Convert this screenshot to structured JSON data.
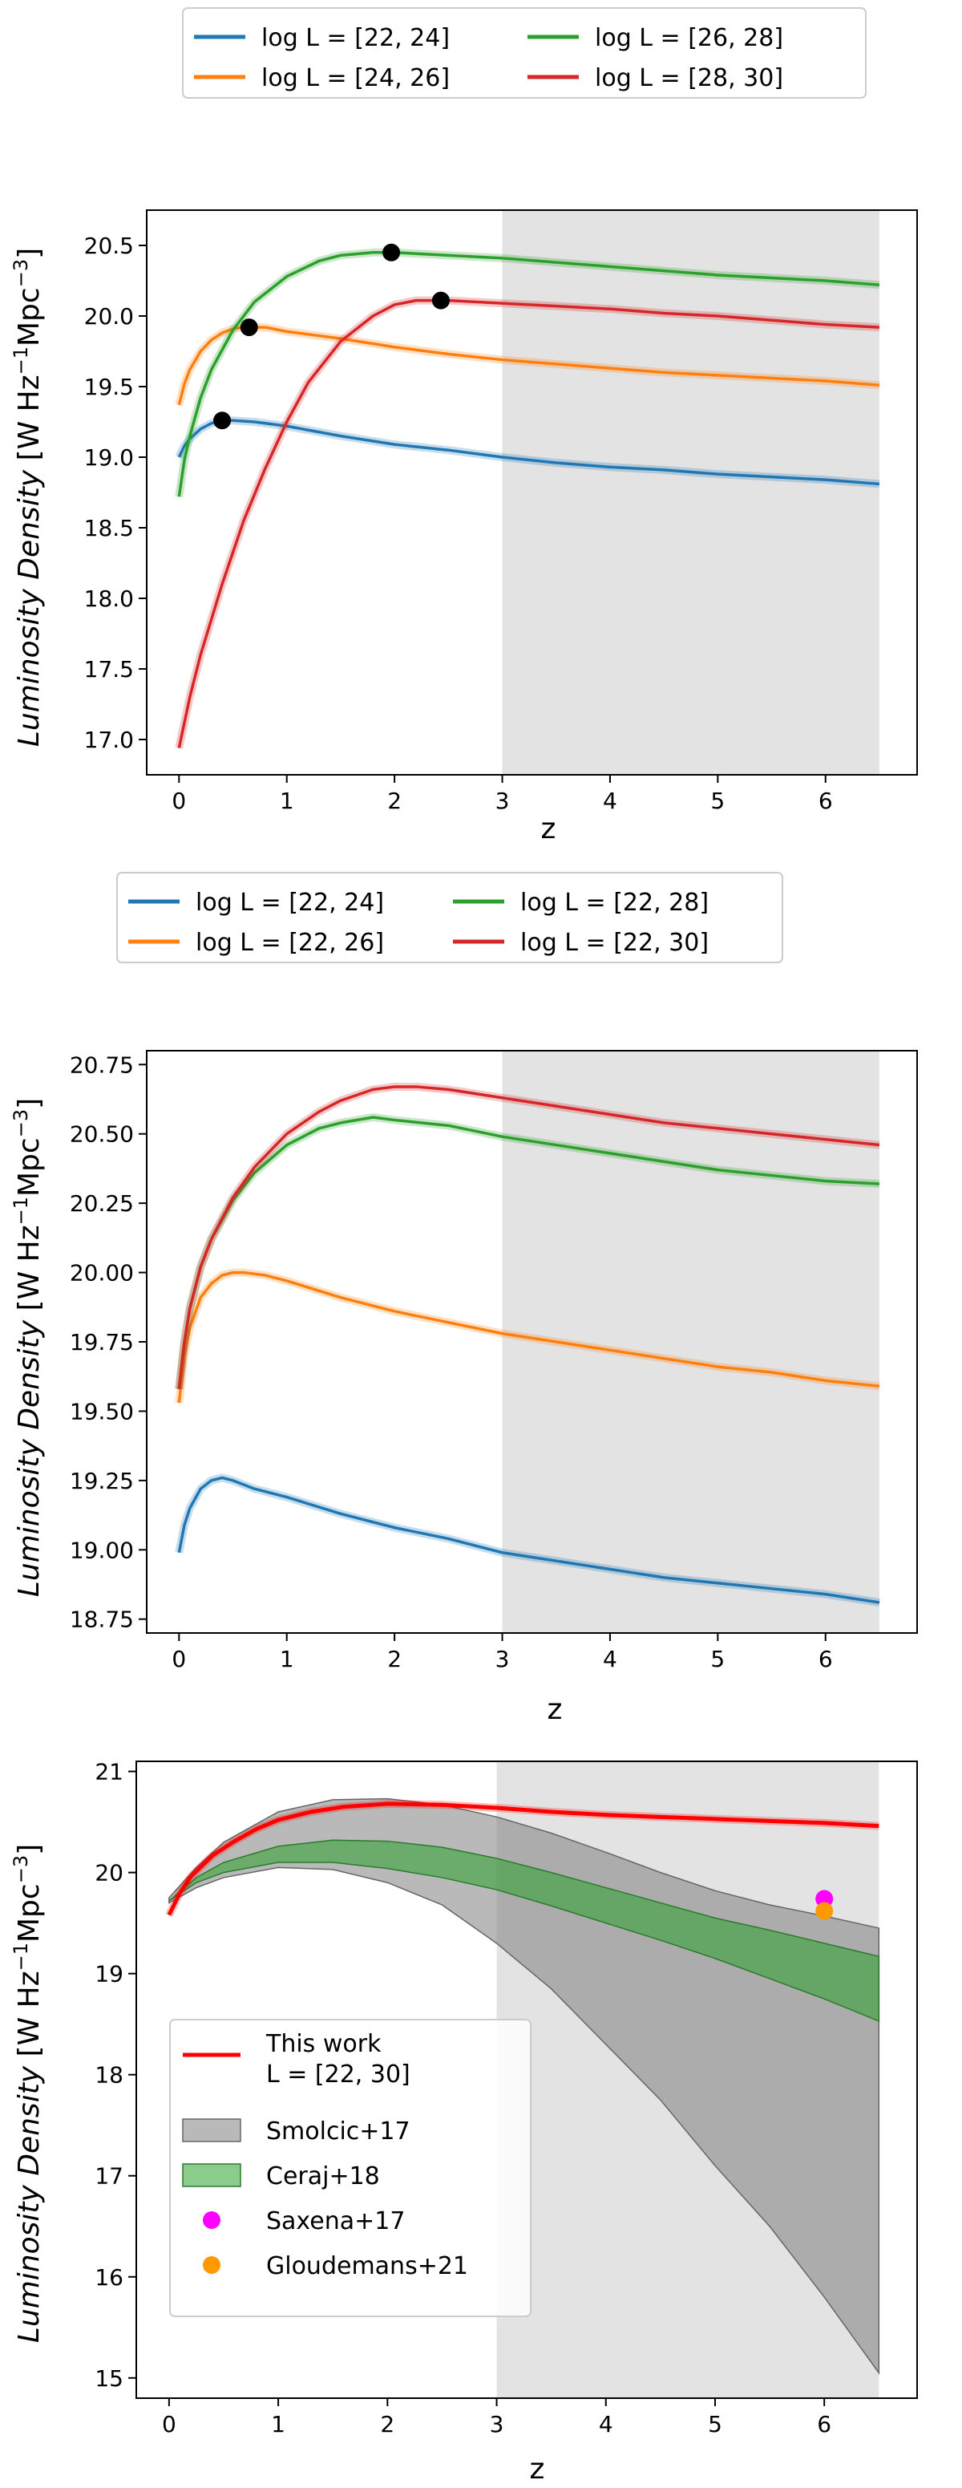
{
  "chart_data": [
    {
      "type": "line",
      "title": "",
      "xlabel": "z",
      "ylabel": "Luminosity Density [W Hz⁻¹Mpc⁻³]",
      "xlim": [
        -0.3,
        6.85
      ],
      "ylim": [
        16.75,
        20.75
      ],
      "xticks": [
        0,
        1,
        2,
        3,
        4,
        5,
        6
      ],
      "yticks": [
        17.0,
        17.5,
        18.0,
        18.5,
        19.0,
        19.5,
        20.0,
        20.5
      ],
      "ytick_labels": [
        "17.0",
        "17.5",
        "18.0",
        "18.5",
        "19.0",
        "19.5",
        "20.0",
        "20.5"
      ],
      "shaded_region": [
        3.0,
        6.5
      ],
      "legend_position": "top-center, above plot",
      "series": [
        {
          "name": "log L = [22, 24]",
          "color": "#1f77b4",
          "x": [
            0,
            0.05,
            0.1,
            0.2,
            0.3,
            0.4,
            0.5,
            0.7,
            1.0,
            1.5,
            2.0,
            2.5,
            3.0,
            3.5,
            4.0,
            4.5,
            5.0,
            5.5,
            6.0,
            6.5
          ],
          "y": [
            19.0,
            19.08,
            19.13,
            19.2,
            19.24,
            19.26,
            19.26,
            19.25,
            19.22,
            19.15,
            19.09,
            19.05,
            19.0,
            18.96,
            18.93,
            18.91,
            18.88,
            18.86,
            18.84,
            18.81
          ],
          "marker": {
            "x": 0.4,
            "y": 19.26
          }
        },
        {
          "name": "log L = [24, 26]",
          "color": "#ff7f0e",
          "x": [
            0,
            0.05,
            0.1,
            0.2,
            0.3,
            0.4,
            0.5,
            0.6,
            0.7,
            0.8,
            1.0,
            1.5,
            2.0,
            2.5,
            3.0,
            3.5,
            4.0,
            4.5,
            5.0,
            5.5,
            6.0,
            6.5
          ],
          "y": [
            19.37,
            19.52,
            19.62,
            19.75,
            19.83,
            19.88,
            19.91,
            19.92,
            19.92,
            19.92,
            19.89,
            19.84,
            19.78,
            19.73,
            19.69,
            19.66,
            19.63,
            19.6,
            19.58,
            19.56,
            19.54,
            19.51
          ],
          "marker": {
            "x": 0.65,
            "y": 19.92
          }
        },
        {
          "name": "log L = [26, 28]",
          "color": "#2ca02c",
          "x": [
            0,
            0.05,
            0.1,
            0.2,
            0.3,
            0.5,
            0.7,
            1.0,
            1.3,
            1.5,
            1.8,
            2.0,
            2.5,
            3.0,
            3.5,
            4.0,
            4.5,
            5.0,
            5.5,
            6.0,
            6.5
          ],
          "y": [
            18.72,
            18.98,
            19.15,
            19.42,
            19.62,
            19.9,
            20.1,
            20.28,
            20.39,
            20.43,
            20.45,
            20.45,
            20.43,
            20.41,
            20.38,
            20.35,
            20.32,
            20.29,
            20.27,
            20.25,
            20.22
          ],
          "marker": {
            "x": 1.97,
            "y": 20.45
          }
        },
        {
          "name": "log L = [28, 30]",
          "color": "#d62728",
          "x": [
            0,
            0.1,
            0.2,
            0.4,
            0.6,
            0.8,
            1.0,
            1.2,
            1.5,
            1.8,
            2.0,
            2.2,
            2.5,
            3.0,
            3.5,
            4.0,
            4.5,
            5.0,
            5.5,
            6.0,
            6.5
          ],
          "y": [
            16.94,
            17.3,
            17.6,
            18.1,
            18.55,
            18.92,
            19.25,
            19.53,
            19.82,
            20.0,
            20.08,
            20.11,
            20.11,
            20.09,
            20.07,
            20.05,
            20.02,
            20.0,
            19.97,
            19.94,
            19.92
          ],
          "marker": {
            "x": 2.43,
            "y": 20.11
          }
        }
      ]
    },
    {
      "type": "line",
      "title": "",
      "xlabel": "z",
      "ylabel": "Luminosity Density [W Hz⁻¹Mpc⁻³]",
      "xlim": [
        -0.3,
        6.85
      ],
      "ylim": [
        18.7,
        20.8
      ],
      "xticks": [
        0,
        1,
        2,
        3,
        4,
        5,
        6
      ],
      "yticks": [
        18.75,
        19.0,
        19.25,
        19.5,
        19.75,
        20.0,
        20.25,
        20.5,
        20.75
      ],
      "ytick_labels": [
        "18.75",
        "19.00",
        "19.25",
        "19.50",
        "19.75",
        "20.00",
        "20.25",
        "20.50",
        "20.75"
      ],
      "shaded_region": [
        3.0,
        6.5
      ],
      "legend_position": "top-center, above plot",
      "series": [
        {
          "name": "log L = [22, 24]",
          "color": "#1f77b4",
          "x": [
            0,
            0.05,
            0.1,
            0.2,
            0.3,
            0.4,
            0.5,
            0.7,
            1.0,
            1.5,
            2.0,
            2.5,
            3.0,
            3.5,
            4.0,
            4.5,
            5.0,
            5.5,
            6.0,
            6.5
          ],
          "y": [
            18.99,
            19.09,
            19.15,
            19.22,
            19.25,
            19.26,
            19.25,
            19.22,
            19.19,
            19.13,
            19.08,
            19.04,
            18.99,
            18.96,
            18.93,
            18.9,
            18.88,
            18.86,
            18.84,
            18.81
          ]
        },
        {
          "name": "log L = [22, 26]",
          "color": "#ff7f0e",
          "x": [
            0,
            0.05,
            0.1,
            0.2,
            0.3,
            0.4,
            0.5,
            0.6,
            0.8,
            1.0,
            1.5,
            2.0,
            2.5,
            3.0,
            3.5,
            4.0,
            4.5,
            5.0,
            5.5,
            6.0,
            6.5
          ],
          "y": [
            19.53,
            19.7,
            19.8,
            19.91,
            19.96,
            19.99,
            20.0,
            20.0,
            19.99,
            19.97,
            19.91,
            19.86,
            19.82,
            19.78,
            19.75,
            19.72,
            19.69,
            19.66,
            19.64,
            19.61,
            19.59
          ]
        },
        {
          "name": "log L = [22, 28]",
          "color": "#2ca02c",
          "x": [
            0,
            0.05,
            0.1,
            0.2,
            0.3,
            0.5,
            0.7,
            1.0,
            1.3,
            1.5,
            1.8,
            2.0,
            2.5,
            3.0,
            3.5,
            4.0,
            4.5,
            5.0,
            5.5,
            6.0,
            6.5
          ],
          "y": [
            19.58,
            19.75,
            19.87,
            20.02,
            20.12,
            20.26,
            20.36,
            20.46,
            20.52,
            20.54,
            20.56,
            20.55,
            20.53,
            20.49,
            20.46,
            20.43,
            20.4,
            20.37,
            20.35,
            20.33,
            20.32
          ]
        },
        {
          "name": "log L = [22, 30]",
          "color": "#d62728",
          "x": [
            0,
            0.05,
            0.1,
            0.2,
            0.3,
            0.5,
            0.7,
            1.0,
            1.3,
            1.5,
            1.8,
            2.0,
            2.2,
            2.5,
            3.0,
            3.5,
            4.0,
            4.5,
            5.0,
            5.5,
            6.0,
            6.5
          ],
          "y": [
            19.58,
            19.75,
            19.87,
            20.02,
            20.12,
            20.27,
            20.38,
            20.5,
            20.58,
            20.62,
            20.66,
            20.67,
            20.67,
            20.66,
            20.63,
            20.6,
            20.57,
            20.54,
            20.52,
            20.5,
            20.48,
            20.46
          ]
        }
      ]
    },
    {
      "type": "area",
      "title": "",
      "xlabel": "z",
      "ylabel": "Luminosity Density [W Hz⁻¹Mpc⁻³]",
      "xlim": [
        -0.3,
        6.85
      ],
      "ylim": [
        14.8,
        21.1
      ],
      "xticks": [
        0,
        1,
        2,
        3,
        4,
        5,
        6
      ],
      "yticks": [
        15,
        16,
        17,
        18,
        19,
        20,
        21
      ],
      "ytick_labels": [
        "15",
        "16",
        "17",
        "18",
        "19",
        "20",
        "21"
      ],
      "shaded_region": [
        3.0,
        6.5
      ],
      "legend_position": "lower-left, inside axes",
      "series": [
        {
          "name": "This work\nL = [22, 30]",
          "kind": "line",
          "color": "#ff0000",
          "x": [
            0,
            0.1,
            0.2,
            0.4,
            0.6,
            0.8,
            1.0,
            1.3,
            1.6,
            2.0,
            2.5,
            3.0,
            3.5,
            4.0,
            4.5,
            5.0,
            5.5,
            6.0,
            6.5
          ],
          "y": [
            19.58,
            19.8,
            19.96,
            20.17,
            20.31,
            20.43,
            20.52,
            20.6,
            20.65,
            20.68,
            20.67,
            20.64,
            20.6,
            20.57,
            20.55,
            20.53,
            20.51,
            20.49,
            20.46
          ]
        },
        {
          "name": "Smolcic+17",
          "kind": "band",
          "color": "#808080",
          "x": [
            0,
            0.25,
            0.5,
            1.0,
            1.5,
            2.0,
            2.5,
            3.0,
            3.5,
            4.0,
            4.5,
            5.0,
            5.5,
            6.0,
            6.5
          ],
          "upper": [
            19.75,
            20.05,
            20.3,
            20.6,
            20.72,
            20.73,
            20.67,
            20.55,
            20.39,
            20.2,
            20.0,
            19.82,
            19.68,
            19.57,
            19.45
          ],
          "lower": [
            19.7,
            19.85,
            19.95,
            20.05,
            20.03,
            19.9,
            19.68,
            19.3,
            18.85,
            18.3,
            17.75,
            17.1,
            16.5,
            15.8,
            15.05
          ]
        },
        {
          "name": "Ceraj+18",
          "kind": "band",
          "color": "#2ca02c",
          "x": [
            0,
            0.25,
            0.5,
            1.0,
            1.5,
            2.0,
            2.5,
            3.0,
            3.5,
            4.0,
            4.5,
            5.0,
            5.5,
            6.0,
            6.5
          ],
          "upper": [
            19.72,
            19.95,
            20.1,
            20.26,
            20.32,
            20.31,
            20.25,
            20.14,
            20.0,
            19.85,
            19.7,
            19.55,
            19.43,
            19.3,
            19.17
          ],
          "lower": [
            19.72,
            19.9,
            20.0,
            20.1,
            20.1,
            20.04,
            19.95,
            19.83,
            19.67,
            19.5,
            19.33,
            19.15,
            18.95,
            18.75,
            18.53
          ]
        },
        {
          "name": "Saxena+17",
          "kind": "point",
          "color": "#ff00ff",
          "x": [
            6.0
          ],
          "y": [
            19.74
          ]
        },
        {
          "name": "Gloudemans+21",
          "kind": "point",
          "color": "#ff9900",
          "x": [
            6.0
          ],
          "y": [
            19.62
          ]
        }
      ]
    }
  ]
}
